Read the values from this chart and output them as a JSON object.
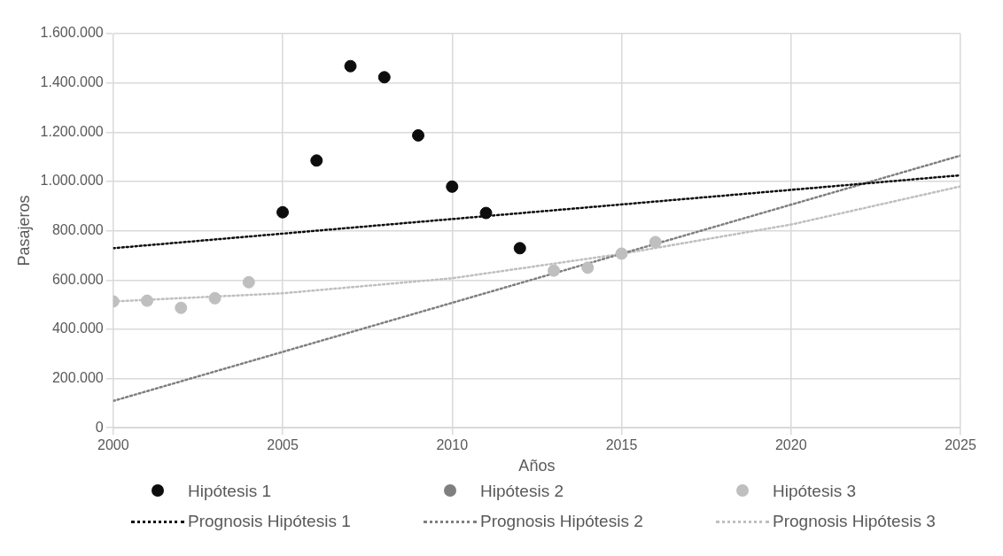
{
  "chart_data": {
    "type": "scatter",
    "xlabel": "Años",
    "ylabel": "Pasajeros",
    "xlim": [
      2000,
      2025
    ],
    "xticks": [
      2000,
      2005,
      2010,
      2015,
      2020,
      2025
    ],
    "ylim": [
      0,
      1600000
    ],
    "yticks": [
      0,
      {
        "value": 200000,
        "label": "200.000"
      },
      {
        "value": 400000,
        "label": "400.000"
      },
      {
        "value": 600000,
        "label": "600.000"
      },
      {
        "value": 800000,
        "label": "800.000"
      },
      {
        "value": 1000000,
        "label": "1.000.000"
      },
      {
        "value": 1200000,
        "label": "1.200.000"
      },
      {
        "value": 1400000,
        "label": "1.400.000"
      },
      {
        "value": 1600000,
        "label": "1.600.000"
      }
    ],
    "grid": true,
    "legend": "bottom",
    "marker": "circle",
    "series": [
      {
        "name": "Hipótesis 1",
        "color": "#0d0d0d",
        "x": [
          2005,
          2006,
          2007,
          2008,
          2009,
          2010,
          2011,
          2012
        ],
        "values": [
          875000,
          1085000,
          1468000,
          1423000,
          1187000,
          979000,
          872000,
          729000
        ]
      },
      {
        "name": "Hipótesis 2",
        "color": "#7f7f7f"
      },
      {
        "name": "Hipótesis 3",
        "color": "#bfbfbf",
        "x": [
          2000,
          2001,
          2002,
          2003,
          2004,
          2013,
          2014,
          2015,
          2016
        ],
        "values": [
          513000,
          516000,
          487000,
          526000,
          591000,
          638000,
          650000,
          707000,
          754000
        ]
      },
      {
        "name": "Prognosis Hipótesis 1",
        "type": "line",
        "line_style": "dotted",
        "marker": "none",
        "color": "#0d0d0d",
        "x": [
          2000,
          2025
        ],
        "values": [
          729000,
          1025000
        ]
      },
      {
        "name": "Prognosis Hipótesis 2",
        "type": "line",
        "line_style": "dotted",
        "marker": "none",
        "color": "#7f7f7f",
        "x": [
          2000,
          2025
        ],
        "values": [
          109000,
          1105000
        ]
      },
      {
        "name": "Prognosis Hipótesis 3",
        "type": "line",
        "line_style": "dotted",
        "marker": "none",
        "color": "#bfbfbf",
        "x": [
          2000,
          2005,
          2010,
          2015,
          2020,
          2025
        ],
        "values": [
          513000,
          546000,
          607000,
          706000,
          825000,
          980000
        ]
      }
    ]
  }
}
